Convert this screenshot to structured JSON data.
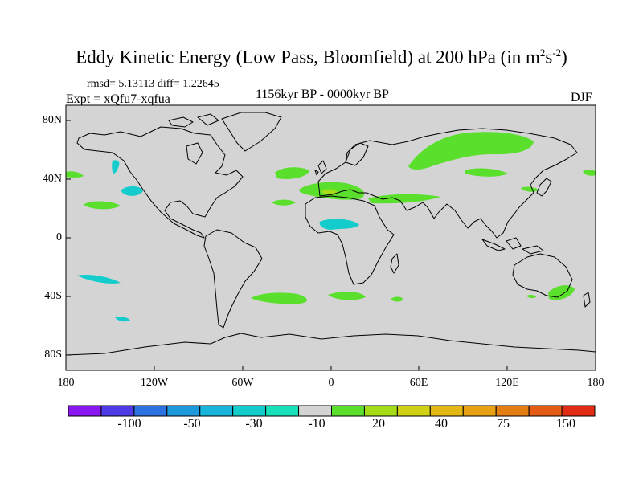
{
  "title": {
    "main": "Eddy Kinetic Energy (Low Pass, Bloomfield) at 200 hPa (in m",
    "sup1": "2",
    "mid": "s",
    "sup2": "-2",
    "close": ")"
  },
  "stats": {
    "line": "rmsd= 5.13113 diff= 1.22645",
    "expt": "Expt = xQfu7-xqfua",
    "period": "1156kyr BP - 0000kyr BP",
    "season": "DJF"
  },
  "axes": {
    "lat_labels": [
      "80N",
      "40N",
      "0",
      "40S",
      "80S"
    ],
    "lon_labels": [
      "180",
      "120W",
      "60W",
      "0",
      "60E",
      "120E",
      "180"
    ]
  },
  "colorbar": {
    "colors": [
      "#8a18f0",
      "#4e3be6",
      "#2c72e0",
      "#1e98dc",
      "#18b4dc",
      "#14cccc",
      "#18e0b8",
      "#d4d4d4",
      "#5ae02c",
      "#a4dc18",
      "#d0d014",
      "#e4b814",
      "#e8a014",
      "#e47e14",
      "#e45c14",
      "#e02c14"
    ],
    "labels": [
      "-100",
      "-50",
      "-30",
      "-10",
      "20",
      "40",
      "75",
      "150"
    ]
  }
}
